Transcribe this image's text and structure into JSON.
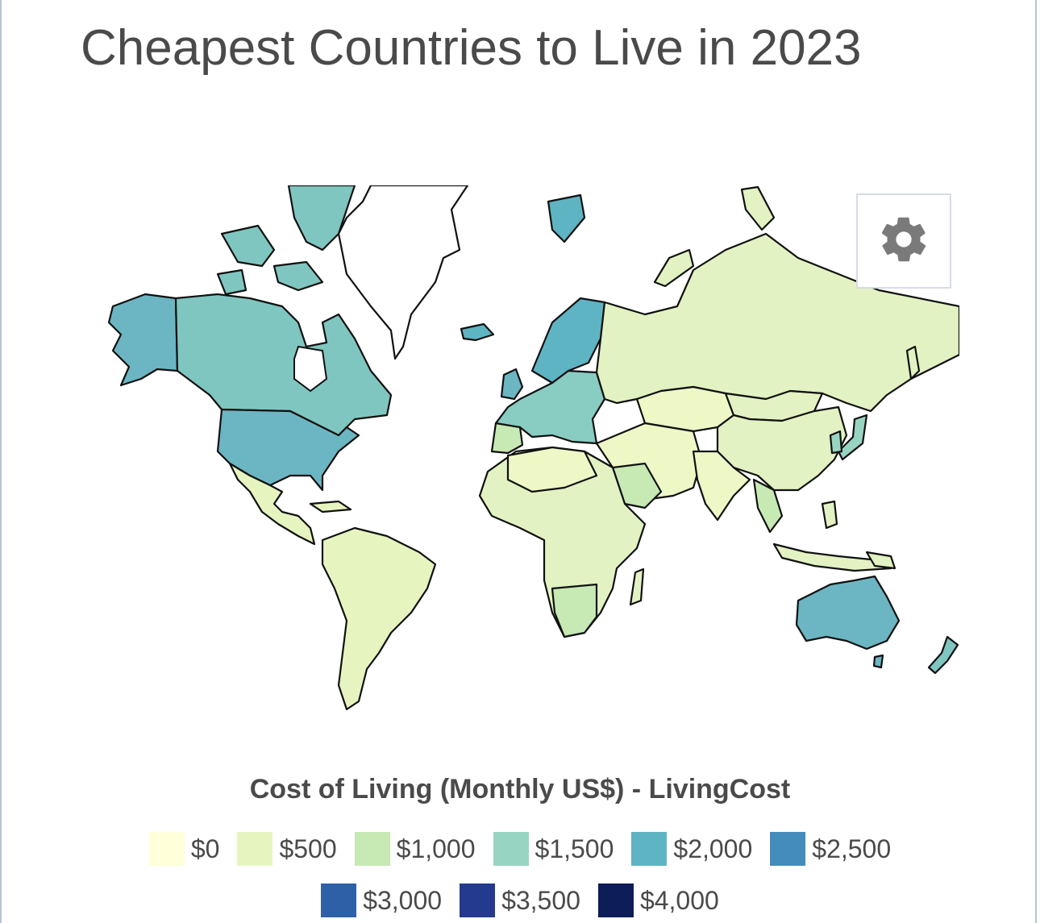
{
  "title": "Cheapest Countries to Live in 2023",
  "legend": {
    "title": "Cost of Living (Monthly US$) - LivingCost",
    "row1": [
      {
        "label": "$0",
        "color": "#ffffd9"
      },
      {
        "label": "$500",
        "color": "#e6f5c0"
      },
      {
        "label": "$1,000",
        "color": "#c7e9b4"
      },
      {
        "label": "$1,500",
        "color": "#98d4c2"
      },
      {
        "label": "$2,000",
        "color": "#5fb4c3"
      },
      {
        "label": "$2,500",
        "color": "#448cbb"
      }
    ],
    "row2": [
      {
        "label": "$3,000",
        "color": "#2e60a8"
      },
      {
        "label": "$3,500",
        "color": "#233a8f"
      },
      {
        "label": "$4,000",
        "color": "#0c1d58"
      }
    ]
  },
  "settings_icon": "gear-icon",
  "map": {
    "type": "choropleth",
    "regions": [
      {
        "name": "Canada",
        "color": "#80c6c0"
      },
      {
        "name": "Alaska",
        "color": "#6bb6c2"
      },
      {
        "name": "Greenland",
        "color": "#ffffff"
      },
      {
        "name": "United States",
        "color": "#6bb6c2"
      },
      {
        "name": "Mexico",
        "color": "#e6f5c0"
      },
      {
        "name": "South America",
        "color": "#e6f5c0"
      },
      {
        "name": "Europe",
        "color": "#88ccc2"
      },
      {
        "name": "Scandinavia",
        "color": "#5fb4c3"
      },
      {
        "name": "Russia",
        "color": "#e2f2c2"
      },
      {
        "name": "China",
        "color": "#e2f2c2"
      },
      {
        "name": "India",
        "color": "#edf8c6"
      },
      {
        "name": "Africa",
        "color": "#e2f2c2"
      },
      {
        "name": "Australia",
        "color": "#6bb6c2"
      },
      {
        "name": "Japan",
        "color": "#98d4c2"
      },
      {
        "name": "Iceland",
        "color": "#5fb4c3"
      }
    ]
  }
}
